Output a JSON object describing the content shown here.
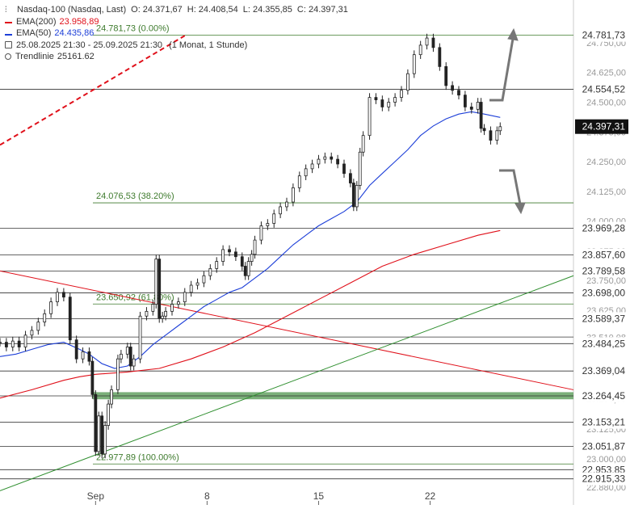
{
  "legend": {
    "instrument": "Nasdaq-100 (Nasdaq, Last)",
    "ohlc": {
      "o": "O: 24.371,67",
      "h": "H: 24.408,54",
      "l": "L: 24.355,85",
      "c": "C: 24.397,31"
    },
    "ema200_label": "EMA(200)",
    "ema200_value": "23.958,89",
    "ema50_label": "EMA(50)",
    "ema50_value": "24.435,86",
    "range": "25.08.2025 21:30 - 25.09.2025 21:30",
    "period": "(1 Monat, 1 Stunde)",
    "trend_label": "Trendlinie",
    "trend_value": "25161.62",
    "overlap_text": "24.781,73 (0.00%)"
  },
  "colors": {
    "up_line": "#222222",
    "ema200": "#e0101a",
    "ema50": "#1d3fd8",
    "fib": "#3d7a2c",
    "support_zone": "#7bb07a",
    "uptrend": "#2f8f2f",
    "downtrend": "#e0101a",
    "arrows": "#777777",
    "current_badge": "#111111"
  },
  "chart_data": {
    "type": "line",
    "title": "Nasdaq-100 (Nasdaq, Last)",
    "xlabel": "",
    "ylabel": "",
    "ylim": [
      22915,
      24780
    ],
    "x_ticks": [
      {
        "label": "Sep",
        "t": 30
      },
      {
        "label": "8",
        "t": 65
      },
      {
        "label": "15",
        "t": 100
      },
      {
        "label": "22",
        "t": 135
      }
    ],
    "xlim": [
      0,
      180
    ],
    "y_ticks": [
      "24.750,00",
      "24.625,00",
      "24.500,00",
      "24.375,00",
      "24.250,00",
      "24.125,00",
      "24.000,00",
      "23.875,00",
      "23.750,00",
      "23.625,00",
      "23.500,00",
      "23.375,00",
      "23.250,00",
      "23.125,00",
      "23.000,00"
    ],
    "y_tick_values": [
      24750,
      24625,
      24500,
      24375,
      24250,
      24125,
      24000,
      23875,
      23750,
      23625,
      23500,
      23375,
      23250,
      23125,
      23000
    ],
    "price_series": [
      [
        0,
        23490
      ],
      [
        2,
        23470
      ],
      [
        4,
        23495
      ],
      [
        6,
        23470
      ],
      [
        8,
        23520
      ],
      [
        10,
        23540
      ],
      [
        12,
        23575
      ],
      [
        14,
        23610
      ],
      [
        16,
        23660
      ],
      [
        18,
        23700
      ],
      [
        20,
        23680
      ],
      [
        22,
        23500
      ],
      [
        24,
        23420
      ],
      [
        26,
        23450
      ],
      [
        28,
        23410
      ],
      [
        29,
        23270
      ],
      [
        30,
        23030
      ],
      [
        31,
        23180
      ],
      [
        32,
        23020
      ],
      [
        33,
        23140
      ],
      [
        34,
        23230
      ],
      [
        35,
        23290
      ],
      [
        37,
        23420
      ],
      [
        38,
        23440
      ],
      [
        40,
        23470
      ],
      [
        41,
        23390
      ],
      [
        42,
        23420
      ],
      [
        44,
        23600
      ],
      [
        46,
        23620
      ],
      [
        48,
        23650
      ],
      [
        49,
        23840
      ],
      [
        50,
        23590
      ],
      [
        51,
        23600
      ],
      [
        52,
        23620
      ],
      [
        54,
        23650
      ],
      [
        56,
        23660
      ],
      [
        58,
        23700
      ],
      [
        60,
        23730
      ],
      [
        62,
        23740
      ],
      [
        64,
        23770
      ],
      [
        66,
        23800
      ],
      [
        68,
        23830
      ],
      [
        70,
        23880
      ],
      [
        72,
        23870
      ],
      [
        74,
        23850
      ],
      [
        76,
        23810
      ],
      [
        77,
        23770
      ],
      [
        78,
        23830
      ],
      [
        79,
        23860
      ],
      [
        80,
        23920
      ],
      [
        82,
        23980
      ],
      [
        84,
        23990
      ],
      [
        86,
        24030
      ],
      [
        88,
        24060
      ],
      [
        90,
        24080
      ],
      [
        92,
        24140
      ],
      [
        94,
        24190
      ],
      [
        96,
        24220
      ],
      [
        98,
        24240
      ],
      [
        100,
        24260
      ],
      [
        102,
        24270
      ],
      [
        104,
        24260
      ],
      [
        106,
        24240
      ],
      [
        108,
        24200
      ],
      [
        110,
        24160
      ],
      [
        111,
        24060
      ],
      [
        112,
        24150
      ],
      [
        113,
        24290
      ],
      [
        114,
        24360
      ],
      [
        116,
        24520
      ],
      [
        118,
        24510
      ],
      [
        120,
        24480
      ],
      [
        122,
        24500
      ],
      [
        124,
        24520
      ],
      [
        126,
        24550
      ],
      [
        128,
        24620
      ],
      [
        130,
        24700
      ],
      [
        132,
        24740
      ],
      [
        134,
        24770
      ],
      [
        136,
        24730
      ],
      [
        138,
        24650
      ],
      [
        140,
        24570
      ],
      [
        142,
        24550
      ],
      [
        144,
        24530
      ],
      [
        146,
        24480
      ],
      [
        148,
        24470
      ],
      [
        150,
        24500
      ],
      [
        151,
        24390
      ],
      [
        152,
        24380
      ],
      [
        154,
        24340
      ],
      [
        156,
        24380
      ],
      [
        157,
        24397
      ]
    ],
    "ema50_series": [
      [
        0,
        23430
      ],
      [
        5,
        23440
      ],
      [
        10,
        23460
      ],
      [
        15,
        23480
      ],
      [
        20,
        23490
      ],
      [
        25,
        23460
      ],
      [
        28,
        23440
      ],
      [
        32,
        23400
      ],
      [
        36,
        23380
      ],
      [
        40,
        23390
      ],
      [
        44,
        23430
      ],
      [
        48,
        23480
      ],
      [
        52,
        23520
      ],
      [
        56,
        23560
      ],
      [
        60,
        23600
      ],
      [
        64,
        23640
      ],
      [
        68,
        23670
      ],
      [
        72,
        23700
      ],
      [
        76,
        23720
      ],
      [
        80,
        23760
      ],
      [
        84,
        23800
      ],
      [
        88,
        23850
      ],
      [
        92,
        23900
      ],
      [
        96,
        23940
      ],
      [
        100,
        23980
      ],
      [
        104,
        24010
      ],
      [
        108,
        24040
      ],
      [
        112,
        24080
      ],
      [
        116,
        24150
      ],
      [
        120,
        24200
      ],
      [
        124,
        24250
      ],
      [
        128,
        24300
      ],
      [
        132,
        24360
      ],
      [
        136,
        24400
      ],
      [
        140,
        24430
      ],
      [
        144,
        24450
      ],
      [
        148,
        24460
      ],
      [
        152,
        24450
      ],
      [
        157,
        24436
      ]
    ],
    "ema200_series": [
      [
        0,
        23255
      ],
      [
        10,
        23290
      ],
      [
        20,
        23330
      ],
      [
        25,
        23345
      ],
      [
        30,
        23355
      ],
      [
        40,
        23365
      ],
      [
        50,
        23380
      ],
      [
        60,
        23420
      ],
      [
        70,
        23470
      ],
      [
        80,
        23530
      ],
      [
        90,
        23600
      ],
      [
        100,
        23670
      ],
      [
        110,
        23740
      ],
      [
        120,
        23810
      ],
      [
        130,
        23860
      ],
      [
        140,
        23900
      ],
      [
        150,
        23940
      ],
      [
        157,
        23960
      ]
    ],
    "horizontal_levels": [
      24781.73,
      24554.52,
      24076.53,
      23969.28,
      23857.6,
      23789.58,
      23698.0,
      23650.92,
      23589.37,
      23512.08,
      23484.25,
      23369.04,
      23264.45,
      23153.21,
      23051.87,
      22977.89,
      22953.85,
      22915.33
    ],
    "fibonacci": [
      {
        "label": "24.781,73 (0.00%)",
        "value": 24781.73
      },
      {
        "label": "24.076,53 (38.20%)",
        "value": 24076.53
      },
      {
        "label": "23.650,92 (61.80%)",
        "value": 23650.92
      },
      {
        "label": "22.977,89 (100.00%)",
        "value": 22977.89
      }
    ],
    "support_zone": [
      23250,
      23280
    ],
    "downtrend_line": [
      [
        0,
        23790
      ],
      [
        180,
        23290
      ]
    ],
    "uptrend_line": [
      [
        0,
        22950
      ],
      [
        180,
        23770
      ]
    ],
    "ema200_dashed_upper": [
      [
        0,
        24320
      ],
      [
        58,
        24780
      ]
    ],
    "right_labels": [
      "24.781,73",
      "24.554,52",
      "23.969,28",
      "23.857,60",
      "23.789,58",
      "23.698,00",
      "23.589,37",
      "23.484,25",
      "23.369,04",
      "23.264,45",
      "23.153,21",
      "23.051,87",
      "22.953,85",
      "22.915,33"
    ],
    "right_label_values": [
      24781.73,
      24554.52,
      23969.28,
      23857.6,
      23789.58,
      23698.0,
      23589.37,
      23484.25,
      23369.04,
      23264.45,
      23153.21,
      23051.87,
      22953.85,
      22915.33
    ],
    "current_price_label": "24.397,31",
    "current_price": 24397.31,
    "partial_labels": [
      "23.510,08",
      "22.880,00"
    ],
    "partial_label_values": [
      23510.08,
      22880
    ],
    "extra_left_labels": [
      "23.000,00"
    ],
    "grid": false,
    "legend_position": "top-left"
  }
}
